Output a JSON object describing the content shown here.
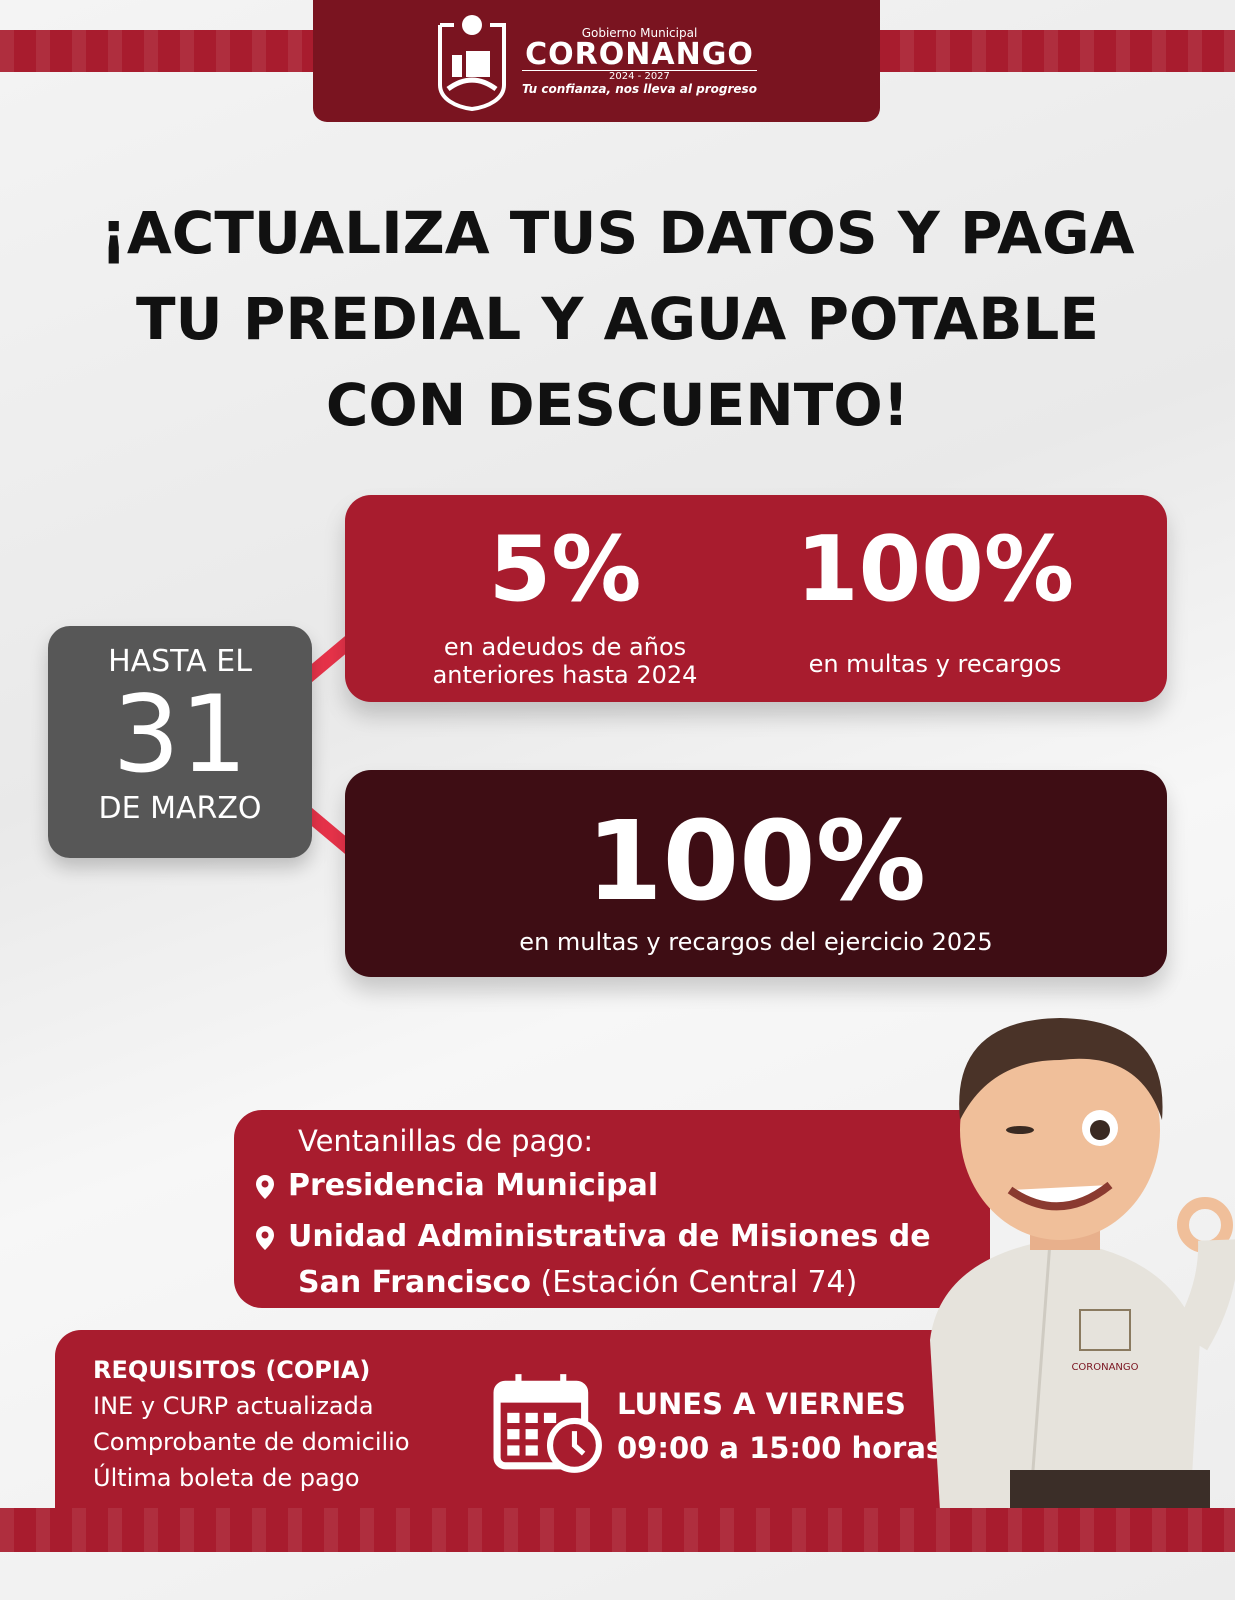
{
  "header": {
    "top_line": "Gobierno Municipal",
    "brand": "CORONANGO",
    "years": "2024 - 2027",
    "slogan": "Tu confianza, nos lleva al progreso"
  },
  "title": {
    "line1": "¡ACTUALIZA TUS DATOS Y PAGA",
    "line2": "TU PREDIAL Y AGUA POTABLE",
    "line3": "CON DESCUENTO!"
  },
  "deadline": {
    "prefix": "HASTA EL",
    "day": "31",
    "month": "DE MARZO"
  },
  "offer1": {
    "left_value": "5%",
    "left_text_1": "en adeudos de años",
    "left_text_2": "anteriores hasta 2024",
    "right_value": "100%",
    "right_text": "en multas y recargos"
  },
  "offer2": {
    "value": "100%",
    "text": "en multas y recargos del ejercicio 2025"
  },
  "ventanillas": {
    "heading": "Ventanillas de pago:",
    "loc1": "Presidencia Municipal",
    "loc2_a": "Unidad Administrativa de Misiones de",
    "loc2_b": "San Francisco",
    "loc2_note": "(Estación Central 74)"
  },
  "requisitos": {
    "heading": "REQUISITOS (COPIA)",
    "items": [
      "INE y CURP actualizada",
      "Comprobante de domicilio",
      "Última boleta de pago"
    ]
  },
  "schedule": {
    "days": "LUNES A VIERNES",
    "hours": "09:00 a 15:00 horas"
  },
  "colors": {
    "red": "#a81c2e",
    "dark": "#3e0d14",
    "header": "#7a1420",
    "gray": "#575757",
    "accent": "#e8334a"
  },
  "mascot_shirt_logo": "CORONANGO"
}
